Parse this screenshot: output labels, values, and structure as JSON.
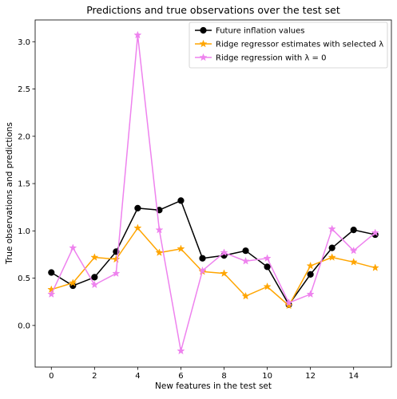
{
  "chart_data": {
    "type": "line",
    "title": "Predictions and true observations over the test set",
    "xlabel": "New features in the test set",
    "ylabel": "True observations and predictions",
    "xlim": [
      -0.75,
      15.75
    ],
    "ylim": [
      -0.44,
      3.23
    ],
    "xticks": [
      0,
      2,
      4,
      6,
      8,
      10,
      12,
      14
    ],
    "yticks": [
      0.0,
      0.5,
      1.0,
      1.5,
      2.0,
      2.5,
      3.0
    ],
    "xtick_labels": [
      "0",
      "2",
      "4",
      "6",
      "8",
      "10",
      "12",
      "14"
    ],
    "ytick_labels": [
      "0.0",
      "0.5",
      "1.0",
      "1.5",
      "2.0",
      "2.5",
      "3.0"
    ],
    "grid": false,
    "legend_position": "top-right",
    "x": [
      0,
      1,
      2,
      3,
      4,
      5,
      6,
      7,
      8,
      9,
      10,
      11,
      12,
      13,
      14,
      15
    ],
    "series": [
      {
        "name": "Future inflation values",
        "color": "#000000",
        "marker": "circle",
        "values": [
          0.56,
          0.42,
          0.51,
          0.78,
          1.24,
          1.22,
          1.32,
          0.71,
          0.74,
          0.79,
          0.62,
          0.22,
          0.54,
          0.82,
          1.01,
          0.96
        ]
      },
      {
        "name": "Ridge regressor estimates with selected λ",
        "color": "#ffa500",
        "marker": "star",
        "values": [
          0.38,
          0.45,
          0.72,
          0.7,
          1.03,
          0.77,
          0.81,
          0.57,
          0.55,
          0.31,
          0.41,
          0.21,
          0.63,
          0.72,
          0.67,
          0.61
        ]
      },
      {
        "name": "Ridge regression with λ = 0",
        "color": "#ee82ee",
        "marker": "star",
        "values": [
          0.33,
          0.82,
          0.43,
          0.55,
          3.07,
          1.01,
          -0.27,
          0.58,
          0.77,
          0.68,
          0.71,
          0.24,
          0.33,
          1.02,
          0.79,
          0.98
        ]
      }
    ]
  }
}
